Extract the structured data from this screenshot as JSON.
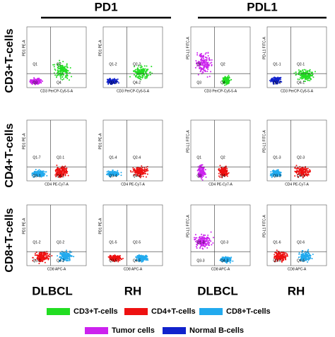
{
  "columns": [
    "PD1",
    "PDL1"
  ],
  "rows": [
    "CD3+T-cells",
    "CD4+T-cells",
    "CD8+T-cells"
  ],
  "groups": [
    "DLBCL",
    "RH",
    "DLBCL",
    "RH"
  ],
  "plots": [
    {
      "y_label": "PD1 PE-A",
      "x_label": "CD3 PerCP-Cy5-5-A",
      "quadrants": [
        "Q1",
        "Q2",
        "Q3",
        "Q4"
      ]
    },
    {
      "y_label": "PD1 PE-A",
      "x_label": "CD3 PerCP-Cy5-5-A",
      "quadrants": [
        "Q1-2",
        "Q2-2",
        "Q3-2",
        "Q4-2"
      ]
    },
    {
      "y_label": "PD-L1 FITC-A",
      "x_label": "CD3 PerCP-Cy5-5-A",
      "quadrants": [
        "Q1",
        "Q2",
        "Q3",
        "Q4"
      ]
    },
    {
      "y_label": "PD-L1 FITC-A",
      "x_label": "CD3 PerCP-Cy5-5-A",
      "quadrants": [
        "Q1-1",
        "Q2-1",
        "Q3-1",
        "Q4-1"
      ]
    },
    {
      "y_label": "PD1 PE-A",
      "x_label": "CD4 PE-Cy7-A",
      "quadrants": [
        "Q1-7",
        "Q2-1",
        "Q3-1",
        "Q4-1"
      ]
    },
    {
      "y_label": "PD1 PE-A",
      "x_label": "CD4 PE-Cy7-A",
      "quadrants": [
        "Q1-4",
        "Q2-4",
        "Q3-4",
        "Q4-4"
      ]
    },
    {
      "y_label": "PD-L1 FITC-A",
      "x_label": "CD4 PE-Cy7-A",
      "quadrants": [
        "Q1",
        "Q2",
        "Q3",
        "Q4"
      ]
    },
    {
      "y_label": "PD-L1 FITC-A",
      "x_label": "CD4 PE-Cy7-A",
      "quadrants": [
        "Q1-3",
        "Q2-3",
        "Q3-3",
        "Q4-3"
      ]
    },
    {
      "y_label": "PD1 PE-A",
      "x_label": "CD8 APC-A",
      "quadrants": [
        "Q1-2",
        "Q2-2",
        "Q3-2",
        "Q4-2"
      ]
    },
    {
      "y_label": "PD1 PE-A",
      "x_label": "CD8 APC-A",
      "quadrants": [
        "Q1-5",
        "Q2-5",
        "Q3-5",
        "Q4-5"
      ]
    },
    {
      "y_label": "PD-L1 FITC-A",
      "x_label": "CD8 APC-A",
      "quadrants": [
        "Q1-3",
        "Q2-3",
        "Q3-3",
        "Q4-3"
      ]
    },
    {
      "y_label": "PD-L1 FITC-A",
      "x_label": "CD8 APC-A",
      "quadrants": [
        "Q1-6",
        "Q2-6",
        "Q3-6",
        "Q4-6"
      ]
    }
  ],
  "legend": [
    {
      "label": "CD3+T-cells",
      "color": "#22dd22"
    },
    {
      "label": "CD4+T-cells",
      "color": "#ee1111"
    },
    {
      "label": "CD8+T-cells",
      "color": "#22aaee"
    },
    {
      "label": "Tumor cells",
      "color": "#cc22ee"
    },
    {
      "label": "Normal B-cells",
      "color": "#1122cc"
    }
  ]
}
